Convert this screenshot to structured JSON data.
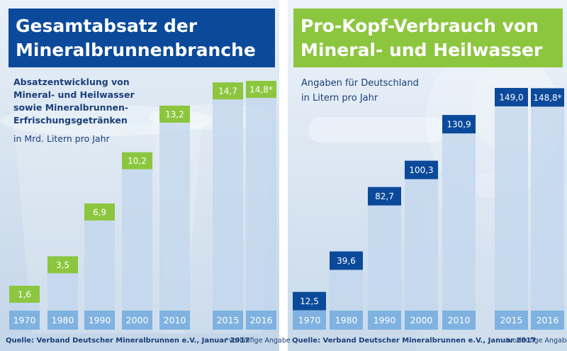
{
  "left": {
    "title_lines": [
      "Gesamtabsatz der",
      "Mineralbrunnenbranche"
    ],
    "subtitle_lines": [
      "Absatzentwicklung von",
      "Mineral- und Heilwasser",
      "sowie Mineralbrunnen-",
      "Erfrischungsgetränken"
    ],
    "unit": "in Mrd. Litern pro Jahr",
    "source": "Quelle: Verband Deutscher Mineralbrunnen e.V., Januar 2017",
    "footnote": "*vorläufige Angabe"
  },
  "right": {
    "title_lines": [
      "Pro-Kopf-Verbrauch von",
      "Mineral- und Heilwasser"
    ],
    "subtitle_lines": [
      "Angaben für Deutschland",
      "in Litern pro Jahr"
    ],
    "source": "Quelle: Verband Deutscher Mineralbrunnen e.V., Januar 2017",
    "footnote": "*vorläufige Angabe"
  },
  "colors": {
    "dark_blue": "#0b4a9b",
    "green": "#8cc63f",
    "bar_body": "#c2d6ec",
    "year_strip": "#7fb2e0"
  },
  "chart_data": [
    {
      "type": "bar",
      "title": "Gesamtabsatz der Mineralbrunnenbranche",
      "ylabel": "in Mrd. Litern pro Jahr",
      "categories": [
        "1970",
        "1980",
        "1990",
        "2000",
        "2010",
        "2015",
        "2016"
      ],
      "values": [
        1.6,
        3.5,
        6.9,
        10.2,
        13.2,
        14.7,
        14.8
      ],
      "value_labels": [
        "1,6",
        "3,5",
        "6,9",
        "10,2",
        "13,2",
        "14,7",
        "14,8*"
      ],
      "label_color": "#8cc63f"
    },
    {
      "type": "bar",
      "title": "Pro-Kopf-Verbrauch von Mineral- und Heilwasser",
      "ylabel": "in Litern pro Jahr",
      "categories": [
        "1970",
        "1980",
        "1990",
        "2000",
        "2010",
        "2015",
        "2016"
      ],
      "values": [
        12.5,
        39.6,
        82.7,
        100.3,
        130.9,
        149.0,
        148.8
      ],
      "value_labels": [
        "12,5",
        "39,6",
        "82,7",
        "100,3",
        "130,9",
        "149,0",
        "148,8*"
      ],
      "label_color": "#0b4a9b"
    }
  ]
}
